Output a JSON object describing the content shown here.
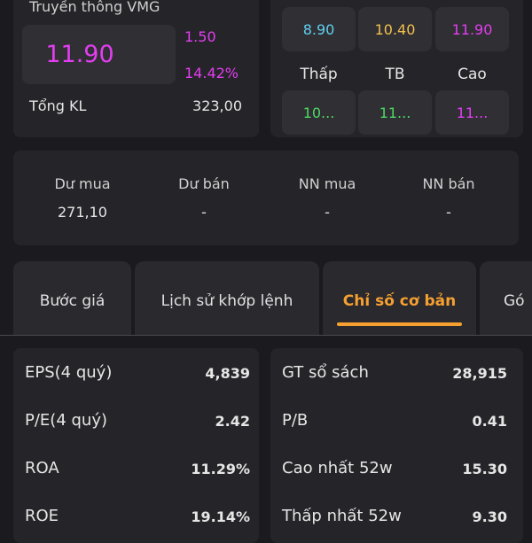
{
  "header": {
    "title": "Truyền thông VMG",
    "price": "11.90",
    "change": "1.50",
    "change_pct": "14.42%",
    "volume_label": "Tổng KL",
    "volume": "323,00"
  },
  "price_range": {
    "top": [
      "8.90",
      "10.40",
      "11.90"
    ],
    "labels": [
      "Thấp",
      "TB",
      "Cao"
    ],
    "bottom": [
      "10...",
      "11...",
      "11..."
    ]
  },
  "order_book": {
    "columns": [
      {
        "label": "Dư mua",
        "value": "271,10"
      },
      {
        "label": "Dư bán",
        "value": "-"
      },
      {
        "label": "NN mua",
        "value": "-"
      },
      {
        "label": "NN bán",
        "value": "-"
      }
    ]
  },
  "tabs": {
    "items": [
      "Bước giá",
      "Lịch sử khớp lệnh",
      "Chỉ số cơ bản",
      "Gó"
    ],
    "active": 2
  },
  "fundamentals": {
    "left": [
      {
        "label": "EPS(4 quý)",
        "value": "4,839"
      },
      {
        "label": "P/E(4 quý)",
        "value": "2.42"
      },
      {
        "label": "ROA",
        "value": "11.29%"
      },
      {
        "label": "ROE",
        "value": "19.14%"
      }
    ],
    "right": [
      {
        "label": "GT sổ sách",
        "value": "28,915"
      },
      {
        "label": "P/B",
        "value": "0.41"
      },
      {
        "label": "Cao nhất 52w",
        "value": "15.30"
      },
      {
        "label": "Thấp nhất 52w",
        "value": "9.30"
      }
    ]
  }
}
